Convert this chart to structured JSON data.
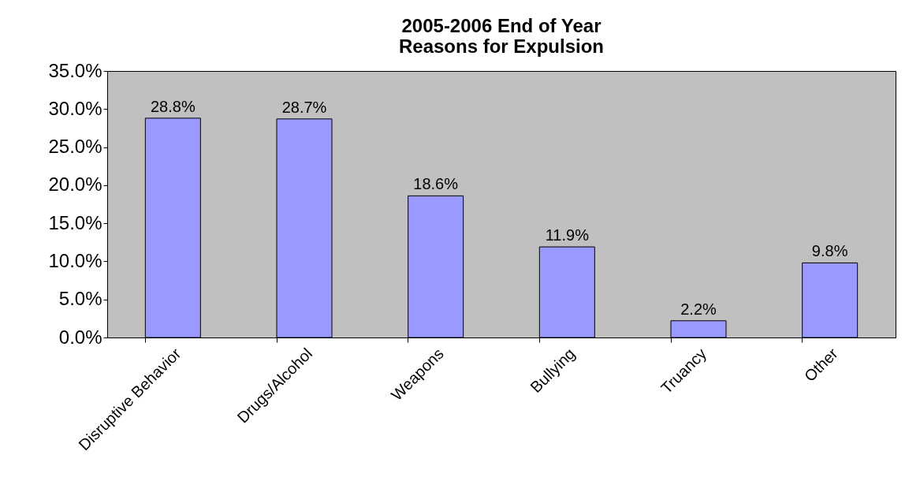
{
  "chart_data": {
    "type": "bar",
    "title": "2005-2006 End of Year\nReasons for Expulsion",
    "categories": [
      "Disruptive Behavior",
      "Drugs/Alcohol",
      "Weapons",
      "Bullying",
      "Truancy",
      "Other"
    ],
    "values": [
      28.8,
      28.7,
      18.6,
      11.9,
      2.2,
      9.8
    ],
    "color": "#9999ff",
    "value_labels": [
      "28.8%",
      "28.7%",
      "18.6%",
      "11.9%",
      "2.2%",
      "9.8%"
    ],
    "ylim": [
      0,
      35
    ],
    "yticks": [
      {
        "value": 0,
        "label": "0.0%"
      },
      {
        "value": 5,
        "label": "5.0%"
      },
      {
        "value": 10,
        "label": "10.0%"
      },
      {
        "value": 15,
        "label": "15.0%"
      },
      {
        "value": 20,
        "label": "20.0%"
      },
      {
        "value": 25,
        "label": "25.0%"
      },
      {
        "value": 30,
        "label": "30.0%"
      },
      {
        "value": 35,
        "label": "35.0%"
      }
    ],
    "grid": false
  }
}
